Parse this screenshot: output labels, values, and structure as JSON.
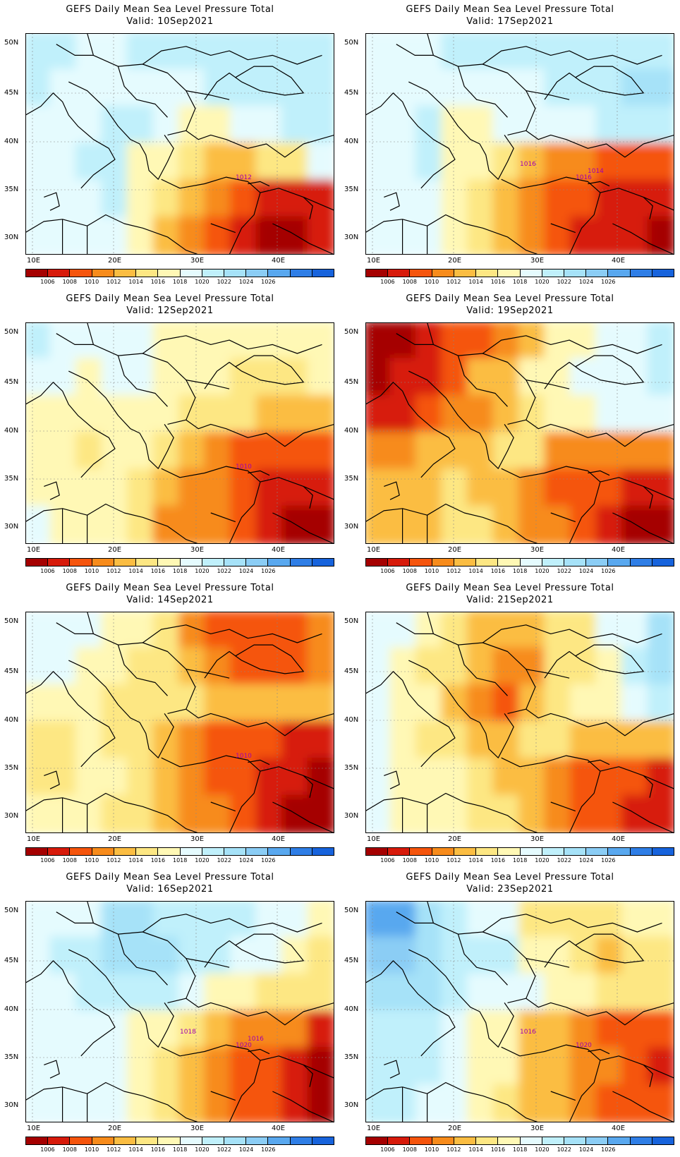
{
  "panels": [
    {
      "title": "GEFS Daily Mean Sea Level Pressure Total",
      "valid": "Valid: 10Sep2021",
      "contour_labels": [
        "1012"
      ]
    },
    {
      "title": "GEFS Daily Mean Sea Level Pressure Total",
      "valid": "Valid: 17Sep2021",
      "contour_labels": [
        "1016",
        "1016",
        "1014"
      ]
    },
    {
      "title": "GEFS Daily Mean Sea Level Pressure Total",
      "valid": "Valid: 12Sep2021",
      "contour_labels": [
        "1010"
      ]
    },
    {
      "title": "GEFS Daily Mean Sea Level Pressure Total",
      "valid": "Valid: 19Sep2021",
      "contour_labels": []
    },
    {
      "title": "GEFS Daily Mean Sea Level Pressure Total",
      "valid": "Valid: 14Sep2021",
      "contour_labels": [
        "1010"
      ]
    },
    {
      "title": "GEFS Daily Mean Sea Level Pressure Total",
      "valid": "Valid: 21Sep2021",
      "contour_labels": []
    },
    {
      "title": "GEFS Daily Mean Sea Level Pressure Total",
      "valid": "Valid: 16Sep2021",
      "contour_labels": [
        "1020",
        "1018",
        "1016"
      ]
    },
    {
      "title": "GEFS Daily Mean Sea Level Pressure Total",
      "valid": "Valid: 23Sep2021",
      "contour_labels": [
        "1020",
        "1016"
      ]
    }
  ],
  "lat_labels": [
    "50N",
    "45N",
    "40N",
    "35N",
    "30N"
  ],
  "lon_labels": [
    "10E",
    "20E",
    "30E",
    "40E"
  ],
  "colorbar": {
    "labels": [
      "1006",
      "1008",
      "1010",
      "1012",
      "1014",
      "1016",
      "1018",
      "1020",
      "1022",
      "1024",
      "1026"
    ],
    "colors": [
      "#a50000",
      "#d71a0a",
      "#f5540c",
      "#f78b1b",
      "#fbbd42",
      "#fde783",
      "#fff8b5",
      "#e5fbfe",
      "#c0f0fb",
      "#a6e2f8",
      "#8bcdf5",
      "#59a8ef",
      "#2f7ee6",
      "#1763dc"
    ]
  }
}
